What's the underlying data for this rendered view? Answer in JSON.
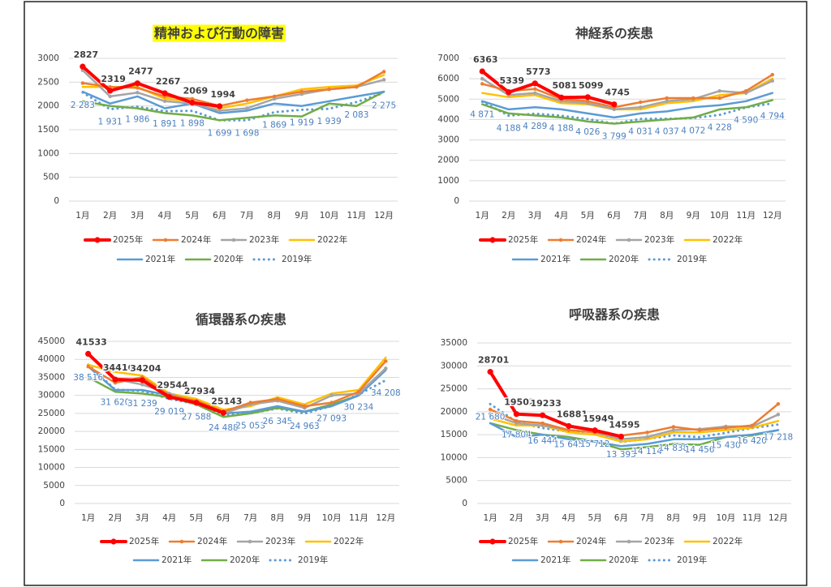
{
  "chart_data": [
    {
      "type": "line",
      "title": "精神および行動の障害",
      "title_highlight": "#ffff00",
      "categories": [
        "1月",
        "2月",
        "3月",
        "4月",
        "5月",
        "6月",
        "7月",
        "8月",
        "9月",
        "10月",
        "11月",
        "12月"
      ],
      "ylim": [
        0,
        3000
      ],
      "yticks": [
        0,
        500,
        1000,
        1500,
        2000,
        2500,
        3000
      ],
      "grid": true,
      "series": [
        {
          "name": "2025年",
          "color": "#ff0000",
          "line_width": 4,
          "marker": true,
          "label_position": "above",
          "values": [
            2827,
            2319,
            2477,
            2267,
            2069,
            1994,
            null,
            null,
            null,
            null,
            null,
            null
          ]
        },
        {
          "name": "2024年",
          "color": "#ed7d31",
          "line_width": 2.5,
          "marker": true,
          "values": [
            2480,
            2400,
            2380,
            2200,
            2150,
            2000,
            2120,
            2200,
            2300,
            2350,
            2400,
            2720
          ]
        },
        {
          "name": "2023年",
          "color": "#a5a5a5",
          "line_width": 2.5,
          "marker": true,
          "values": [
            2750,
            2200,
            2280,
            2100,
            2050,
            1900,
            1950,
            2150,
            2250,
            2350,
            2400,
            2550
          ]
        },
        {
          "name": "2022年",
          "color": "#ffc000",
          "line_width": 2.5,
          "values": [
            2400,
            2400,
            2400,
            2150,
            2100,
            1950,
            2050,
            2200,
            2350,
            2400,
            2430,
            2650
          ]
        },
        {
          "name": "2021年",
          "color": "#5b9bd5",
          "line_width": 2.5,
          "values": [
            2300,
            2050,
            2200,
            1950,
            2050,
            1850,
            1900,
            2050,
            2000,
            2100,
            2200,
            2300
          ]
        },
        {
          "name": "2020年",
          "color": "#70ad47",
          "line_width": 2.5,
          "values": [
            2100,
            2000,
            1950,
            1850,
            1800,
            1700,
            1750,
            1800,
            1780,
            2050,
            2000,
            2300
          ]
        },
        {
          "name": "2019年",
          "color": "#5b9bd5",
          "line_width": 3,
          "dotted": true,
          "label_position": "below",
          "values": [
            2283,
            1931,
            1986,
            1891,
            1898,
            1699,
            1698,
            1869,
            1919,
            1939,
            2083,
            2275
          ],
          "value_labels": [
            "2 283",
            "1 931",
            "1 986",
            "1 891",
            "1 898",
            "1 699",
            "1 698",
            "1 869",
            "1 919",
            "1 939",
            "2 083",
            "2 275"
          ]
        }
      ]
    },
    {
      "type": "line",
      "title": "神経系の疾患",
      "categories": [
        "1月",
        "2月",
        "3月",
        "4月",
        "5月",
        "6月",
        "7月",
        "8月",
        "9月",
        "10月",
        "11月",
        "12月"
      ],
      "ylim": [
        0,
        7000
      ],
      "yticks": [
        0,
        1000,
        2000,
        3000,
        4000,
        5000,
        6000,
        7000
      ],
      "grid": true,
      "series": [
        {
          "name": "2025年",
          "color": "#ff0000",
          "line_width": 4,
          "marker": true,
          "label_position": "above",
          "values": [
            6363,
            5339,
            5773,
            5081,
            5099,
            4745,
            null,
            null,
            null,
            null,
            null,
            null
          ]
        },
        {
          "name": "2024年",
          "color": "#ed7d31",
          "line_width": 2.5,
          "marker": true,
          "values": [
            5750,
            5400,
            5500,
            5000,
            4900,
            4600,
            4850,
            5050,
            5050,
            5050,
            5400,
            6200
          ]
        },
        {
          "name": "2023年",
          "color": "#a5a5a5",
          "line_width": 2.5,
          "marker": true,
          "values": [
            6000,
            5200,
            5300,
            4900,
            4800,
            4500,
            4600,
            4900,
            5000,
            5400,
            5300,
            5900
          ]
        },
        {
          "name": "2022年",
          "color": "#ffc000",
          "line_width": 2.5,
          "values": [
            5300,
            5100,
            5200,
            4800,
            4750,
            4500,
            4500,
            4800,
            4900,
            5200,
            5300,
            6000
          ]
        },
        {
          "name": "2021年",
          "color": "#5b9bd5",
          "line_width": 2.5,
          "values": [
            4900,
            4500,
            4600,
            4500,
            4300,
            4100,
            4300,
            4400,
            4600,
            4700,
            4900,
            5300
          ]
        },
        {
          "name": "2020年",
          "color": "#70ad47",
          "line_width": 2.5,
          "values": [
            4750,
            4300,
            4200,
            4100,
            3900,
            3800,
            3900,
            4000,
            4100,
            4500,
            4600,
            4950
          ]
        },
        {
          "name": "2019年",
          "color": "#5b9bd5",
          "line_width": 3,
          "dotted": true,
          "label_position": "below",
          "values": [
            4871,
            4188,
            4289,
            4188,
            4026,
            3799,
            4031,
            4037,
            4072,
            4228,
            4590,
            4794
          ],
          "value_labels": [
            "4 871",
            "4 188",
            "4 289",
            "4 188",
            "4 026",
            "3 799",
            "4 031",
            "4 037",
            "4 072",
            "4 228",
            "4 590",
            "4 794"
          ]
        }
      ]
    },
    {
      "type": "line",
      "title": "循環器系の疾患",
      "categories": [
        "1月",
        "2月",
        "3月",
        "4月",
        "5月",
        "6月",
        "7月",
        "8月",
        "9月",
        "10月",
        "11月",
        "12月"
      ],
      "ylim": [
        0,
        45000
      ],
      "yticks": [
        0,
        5000,
        10000,
        15000,
        20000,
        25000,
        30000,
        35000,
        40000,
        45000
      ],
      "grid": true,
      "series": [
        {
          "name": "2025年",
          "color": "#ff0000",
          "line_width": 4,
          "marker": true,
          "label_position": "above",
          "values": [
            41533,
            34416,
            34204,
            29544,
            27934,
            25143,
            null,
            null,
            null,
            null,
            null,
            null
          ]
        },
        {
          "name": "2024年",
          "color": "#ed7d31",
          "line_width": 2.5,
          "marker": true,
          "values": [
            38000,
            33500,
            35000,
            30000,
            28500,
            25500,
            28000,
            29000,
            27000,
            28000,
            31000,
            39500
          ]
        },
        {
          "name": "2023年",
          "color": "#a5a5a5",
          "line_width": 2.5,
          "marker": true,
          "values": [
            41500,
            34500,
            33000,
            30500,
            28000,
            25000,
            27500,
            28500,
            26500,
            30000,
            30500,
            37500
          ]
        },
        {
          "name": "2022年",
          "color": "#ffc000",
          "line_width": 2.5,
          "values": [
            38500,
            36500,
            35500,
            30500,
            29000,
            26000,
            27000,
            29500,
            27500,
            30500,
            31500,
            40500
          ]
        },
        {
          "name": "2021年",
          "color": "#5b9bd5",
          "line_width": 2.5,
          "values": [
            38000,
            31500,
            31500,
            30000,
            29000,
            25000,
            25500,
            27000,
            25500,
            27000,
            30000,
            37000
          ]
        },
        {
          "name": "2020年",
          "color": "#70ad47",
          "line_width": 2.5,
          "values": [
            35000,
            31000,
            30500,
            29500,
            27500,
            24000,
            25000,
            26500,
            25500,
            27500,
            30000,
            37500
          ]
        },
        {
          "name": "2019年",
          "color": "#5b9bd5",
          "line_width": 3,
          "dotted": true,
          "label_position": "below",
          "values": [
            38516,
            31620,
            31239,
            29019,
            27588,
            24488,
            25053,
            26345,
            24963,
            27093,
            30234,
            34208
          ],
          "value_labels": [
            "38 516",
            "31 620",
            "31 239",
            "29 019",
            "27 588",
            "24 488",
            "25 053",
            "26 345",
            "24 963",
            "27 093",
            "30 234",
            "34 208"
          ]
        }
      ]
    },
    {
      "type": "line",
      "title": "呼吸器系の疾患",
      "categories": [
        "1月",
        "2月",
        "3月",
        "4月",
        "5月",
        "6月",
        "7月",
        "8月",
        "9月",
        "10月",
        "11月",
        "12月"
      ],
      "ylim": [
        0,
        35000
      ],
      "yticks": [
        0,
        5000,
        10000,
        15000,
        20000,
        25000,
        30000,
        35000
      ],
      "grid": true,
      "series": [
        {
          "name": "2025年",
          "color": "#ff0000",
          "line_width": 4,
          "marker": true,
          "label_position": "above",
          "values": [
            28701,
            19502,
            19233,
            16881,
            15949,
            14595,
            null,
            null,
            null,
            null,
            null,
            null
          ]
        },
        {
          "name": "2024年",
          "color": "#ed7d31",
          "line_width": 2.5,
          "marker": true,
          "values": [
            20500,
            18000,
            17500,
            16000,
            15500,
            14800,
            15500,
            16700,
            16000,
            16500,
            17000,
            21700
          ]
        },
        {
          "name": "2023年",
          "color": "#a5a5a5",
          "line_width": 2.5,
          "marker": true,
          "values": [
            19500,
            17500,
            17000,
            16000,
            15500,
            14000,
            14500,
            16000,
            16200,
            16800,
            16800,
            19400
          ]
        },
        {
          "name": "2022年",
          "color": "#ffc000",
          "line_width": 2.5,
          "values": [
            18500,
            17000,
            17000,
            15500,
            15000,
            13500,
            14000,
            15500,
            15500,
            16000,
            16500,
            18000
          ]
        },
        {
          "name": "2021年",
          "color": "#5b9bd5",
          "line_width": 2.5,
          "values": [
            17500,
            14500,
            15000,
            14000,
            13500,
            12500,
            13000,
            14000,
            14000,
            14500,
            15000,
            16000
          ]
        },
        {
          "name": "2020年",
          "color": "#70ad47",
          "line_width": 2.5,
          "values": [
            17500,
            16000,
            15000,
            14500,
            13500,
            11800,
            12300,
            13000,
            12800,
            14500,
            14800,
            16000
          ]
        },
        {
          "name": "2019年",
          "color": "#5b9bd5",
          "line_width": 3,
          "dotted": true,
          "label_position": "below",
          "values": [
            21680,
            17804,
            16444,
            15645,
            15712,
            13393,
            14114,
            14838,
            14456,
            15430,
            16420,
            17218
          ],
          "value_labels": [
            "21 680",
            "17 804",
            "16 444",
            "15 645",
            "15 712",
            "13 393",
            "14 114",
            "14 838",
            "14 456",
            "15 430",
            "16 420",
            "17 218"
          ]
        }
      ]
    }
  ]
}
